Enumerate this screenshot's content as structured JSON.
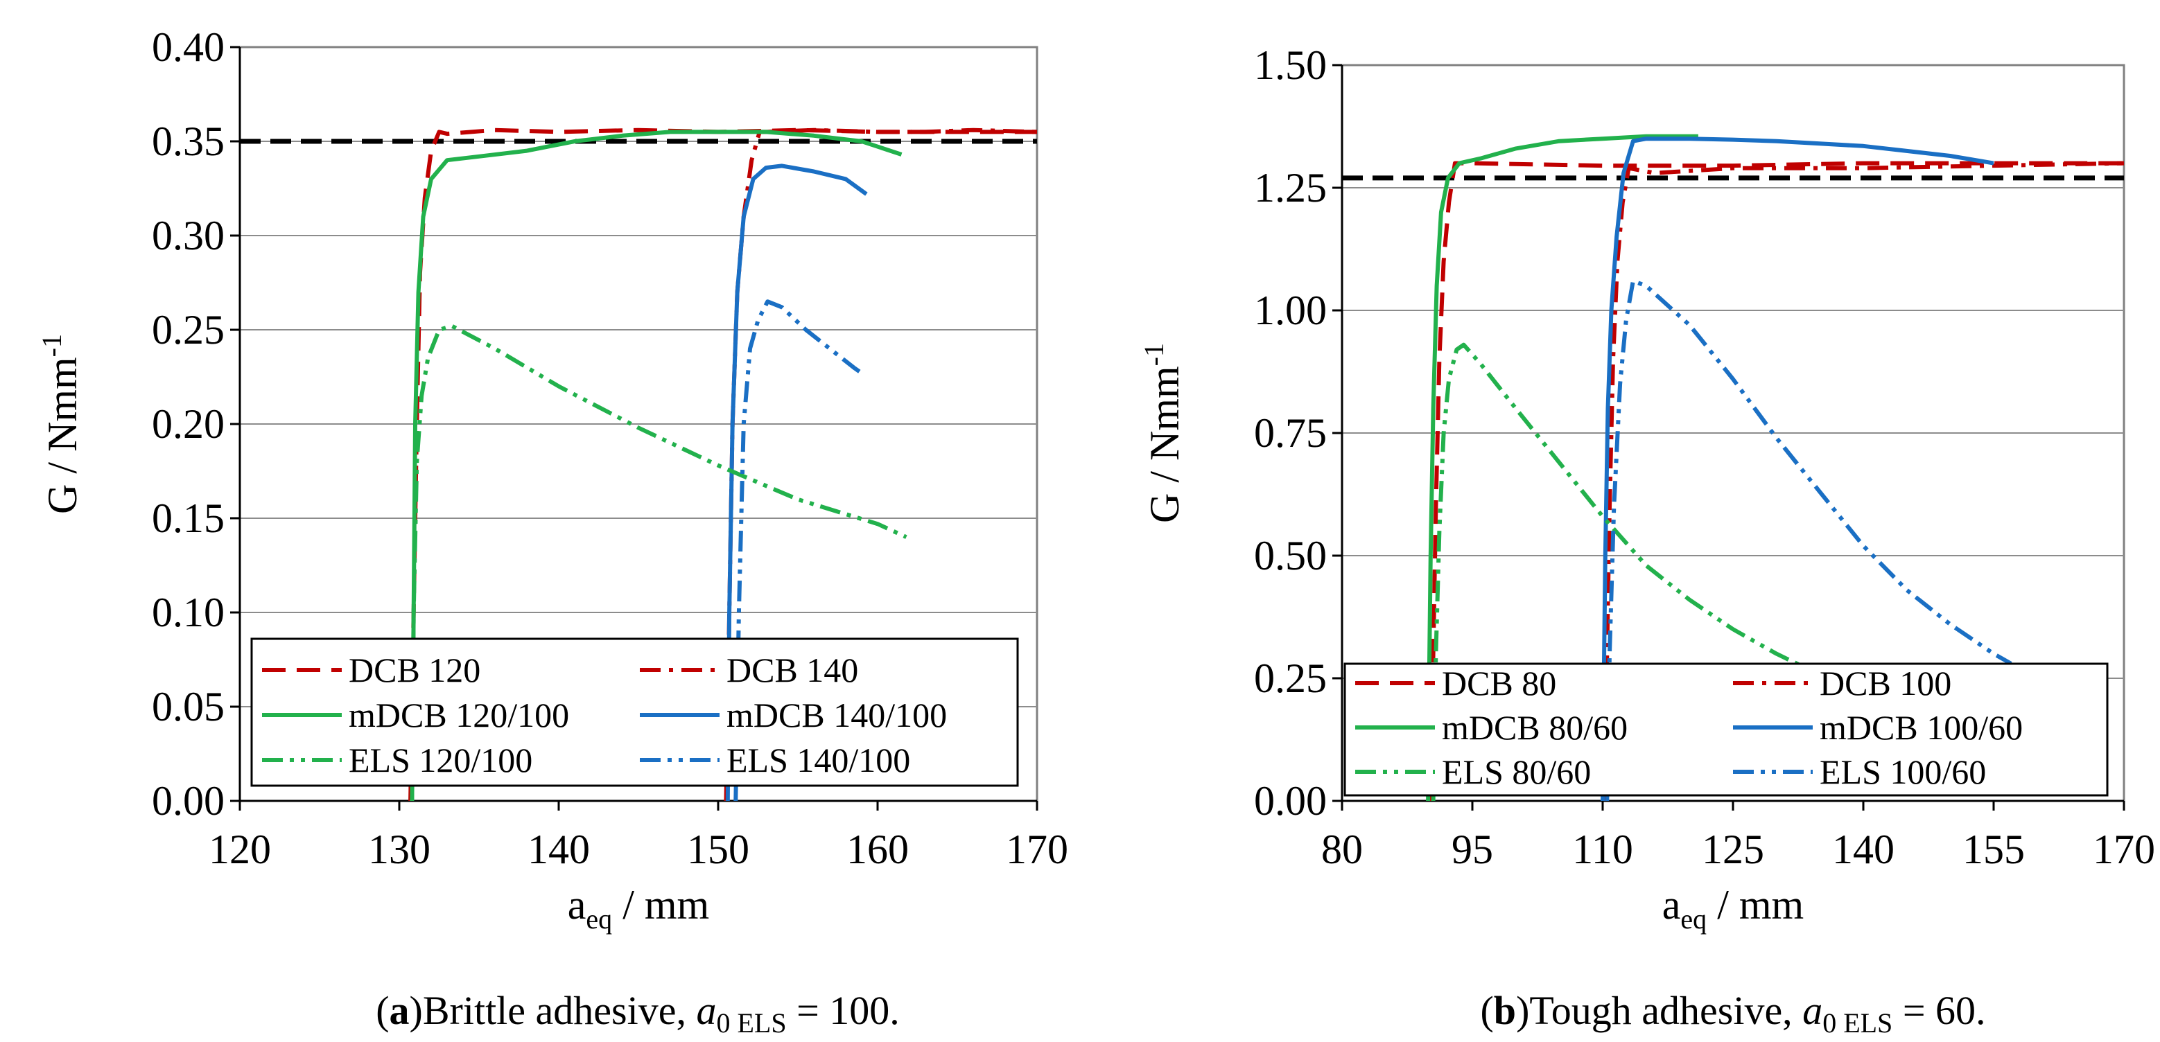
{
  "chart_data": [
    {
      "id": "a",
      "type": "line",
      "caption": {
        "letter": "a",
        "text": "Brittle adhesive, ",
        "math_symbol": "a",
        "math_subscript": "0 ELS",
        "math_value": " = 100."
      },
      "xlabel": {
        "main": "a",
        "sub": "eq",
        "rest": " / mm"
      },
      "ylabel": {
        "main": "G / Nmm",
        "sup": "-1"
      },
      "xlim": [
        120,
        170
      ],
      "ylim": [
        0,
        0.4
      ],
      "x_ticks": [
        120,
        130,
        140,
        150,
        160,
        170
      ],
      "x_tick_labels": [
        "120",
        "130",
        "140",
        "150",
        "160",
        "170"
      ],
      "y_ticks": [
        0,
        0.05,
        0.1,
        0.15,
        0.2,
        0.25,
        0.3,
        0.35,
        0.4
      ],
      "y_tick_labels": [
        "0.00",
        "0.05",
        "0.10",
        "0.15",
        "0.20",
        "0.25",
        "0.30",
        "0.35",
        "0.40"
      ],
      "grid": "horizontal",
      "reference_line": {
        "y": 0.35,
        "color": "#000000"
      },
      "legend_position": "bottom",
      "series": [
        {
          "name": "DCB 120",
          "color": "#c00000",
          "style": "dash",
          "x": [
            130.7,
            130.9,
            131.1,
            131.3,
            131.6,
            132.0,
            132.5,
            133.0,
            136.0,
            140.0,
            145.0,
            150.0,
            155.0,
            160.0,
            165.0,
            170.0
          ],
          "y": [
            0.0,
            0.1,
            0.2,
            0.28,
            0.32,
            0.345,
            0.355,
            0.354,
            0.356,
            0.355,
            0.356,
            0.355,
            0.356,
            0.355,
            0.355,
            0.355
          ]
        },
        {
          "name": "DCB 140",
          "color": "#c00000",
          "style": "dashdot",
          "x": [
            150.5,
            150.7,
            150.9,
            151.2,
            151.6,
            152.1,
            152.6,
            153.0,
            156.0,
            160.0,
            163.0,
            166.0,
            170.0
          ],
          "y": [
            0.0,
            0.1,
            0.2,
            0.27,
            0.31,
            0.34,
            0.355,
            0.355,
            0.356,
            0.355,
            0.355,
            0.356,
            0.355
          ]
        },
        {
          "name": "mDCB 120/100",
          "color": "#22b14c",
          "style": "solid",
          "x": [
            130.8,
            130.9,
            131.0,
            131.2,
            131.5,
            132.0,
            133.0,
            135.0,
            138.0,
            141.0,
            144.0,
            147.0,
            150.0,
            153.0,
            156.0,
            159.0,
            161.5
          ],
          "y": [
            0.0,
            0.1,
            0.2,
            0.27,
            0.31,
            0.33,
            0.34,
            0.342,
            0.345,
            0.35,
            0.353,
            0.355,
            0.355,
            0.355,
            0.353,
            0.35,
            0.343
          ]
        },
        {
          "name": "mDCB 140/100",
          "color": "#1a6fc4",
          "style": "solid",
          "x": [
            150.6,
            150.7,
            150.9,
            151.2,
            151.6,
            152.2,
            153.0,
            154.0,
            156.0,
            158.0,
            159.3
          ],
          "y": [
            0.0,
            0.1,
            0.2,
            0.27,
            0.31,
            0.33,
            0.336,
            0.337,
            0.334,
            0.33,
            0.322
          ]
        },
        {
          "name": "ELS 120/100",
          "color": "#22b14c",
          "style": "dashdotdot",
          "x": [
            130.8,
            130.9,
            131.1,
            131.4,
            131.8,
            132.5,
            133.3,
            136.0,
            140.0,
            145.0,
            150.0,
            155.0,
            160.0,
            161.8
          ],
          "y": [
            0.0,
            0.1,
            0.18,
            0.215,
            0.235,
            0.25,
            0.252,
            0.24,
            0.22,
            0.198,
            0.178,
            0.16,
            0.147,
            0.14
          ]
        },
        {
          "name": "ELS 140/100",
          "color": "#1a6fc4",
          "style": "dashdotdot",
          "x": [
            151.1,
            151.3,
            151.6,
            152.0,
            152.5,
            153.1,
            154.0,
            155.5,
            157.0,
            158.5,
            159.0
          ],
          "y": [
            0.0,
            0.1,
            0.2,
            0.24,
            0.255,
            0.265,
            0.262,
            0.25,
            0.24,
            0.23,
            0.227
          ]
        }
      ]
    },
    {
      "id": "b",
      "type": "line",
      "caption": {
        "letter": "b",
        "text": "Tough adhesive, ",
        "math_symbol": "a",
        "math_subscript": "0 ELS",
        "math_value": " = 60."
      },
      "xlabel": {
        "main": "a",
        "sub": "eq",
        "rest": " / mm"
      },
      "ylabel": {
        "main": "G / Nmm",
        "sup": "-1"
      },
      "xlim": [
        80,
        170
      ],
      "ylim": [
        0,
        1.5
      ],
      "x_ticks": [
        80,
        95,
        110,
        125,
        140,
        155,
        170
      ],
      "x_tick_labels": [
        "80",
        "95",
        "110",
        "125",
        "140",
        "155",
        "170"
      ],
      "y_ticks": [
        0,
        0.25,
        0.5,
        0.75,
        1.0,
        1.25,
        1.5
      ],
      "y_tick_labels": [
        "0.00",
        "0.25",
        "0.50",
        "0.75",
        "1.00",
        "1.25",
        "1.50"
      ],
      "grid": "horizontal",
      "reference_line": {
        "y": 1.27,
        "color": "#000000"
      },
      "legend_position": "bottom",
      "series": [
        {
          "name": "DCB 80",
          "color": "#c00000",
          "style": "dash",
          "x": [
            90.2,
            90.5,
            90.8,
            91.2,
            91.7,
            92.3,
            93.0,
            95.0,
            110.0,
            125.0,
            140.0,
            155.0,
            170.0
          ],
          "y": [
            0.0,
            0.3,
            0.6,
            0.9,
            1.1,
            1.22,
            1.3,
            1.3,
            1.295,
            1.295,
            1.3,
            1.3,
            1.3
          ]
        },
        {
          "name": "DCB 100",
          "color": "#c00000",
          "style": "dashdot",
          "x": [
            110.2,
            110.5,
            110.8,
            111.2,
            111.7,
            112.3,
            113.0,
            116.0,
            125.0,
            140.0,
            155.0,
            170.0
          ],
          "y": [
            0.0,
            0.3,
            0.6,
            0.9,
            1.1,
            1.22,
            1.29,
            1.28,
            1.29,
            1.29,
            1.295,
            1.3
          ]
        },
        {
          "name": "mDCB 80/60",
          "color": "#22b14c",
          "style": "solid",
          "x": [
            89.9,
            90.0,
            90.2,
            90.5,
            90.9,
            91.4,
            92.2,
            93.5,
            96.0,
            100.0,
            105.0,
            110.0,
            115.0,
            121.0
          ],
          "y": [
            0.0,
            0.2,
            0.5,
            0.8,
            1.05,
            1.2,
            1.27,
            1.3,
            1.31,
            1.33,
            1.345,
            1.35,
            1.355,
            1.355
          ]
        },
        {
          "name": "mDCB 100/60",
          "color": "#1a6fc4",
          "style": "solid",
          "x": [
            110.0,
            110.1,
            110.3,
            110.6,
            111.0,
            111.6,
            112.4,
            113.5,
            115.0,
            120.0,
            125.0,
            130.0,
            135.0,
            140.0,
            145.0,
            150.0,
            155.0
          ],
          "y": [
            0.0,
            0.2,
            0.5,
            0.8,
            1.0,
            1.15,
            1.28,
            1.345,
            1.35,
            1.35,
            1.348,
            1.345,
            1.34,
            1.335,
            1.325,
            1.315,
            1.3
          ]
        },
        {
          "name": "ELS 80/60",
          "color": "#22b14c",
          "style": "dashdotdot",
          "x": [
            90.5,
            90.8,
            91.2,
            91.7,
            92.3,
            93.2,
            94.0,
            96.0,
            100.0,
            105.0,
            110.0,
            115.0,
            120.0,
            125.0,
            130.0,
            133.5
          ],
          "y": [
            0.0,
            0.3,
            0.55,
            0.75,
            0.86,
            0.92,
            0.93,
            0.89,
            0.8,
            0.69,
            0.58,
            0.48,
            0.41,
            0.35,
            0.3,
            0.27
          ]
        },
        {
          "name": "ELS 100/60",
          "color": "#1a6fc4",
          "style": "dashdotdot",
          "x": [
            110.5,
            110.8,
            111.3,
            112.0,
            112.7,
            113.5,
            115.0,
            120.0,
            125.0,
            130.0,
            135.0,
            140.0,
            145.0,
            150.0,
            155.0,
            157.0
          ],
          "y": [
            0.0,
            0.3,
            0.6,
            0.85,
            0.98,
            1.06,
            1.05,
            0.97,
            0.86,
            0.74,
            0.63,
            0.52,
            0.43,
            0.36,
            0.3,
            0.28
          ]
        }
      ]
    }
  ]
}
